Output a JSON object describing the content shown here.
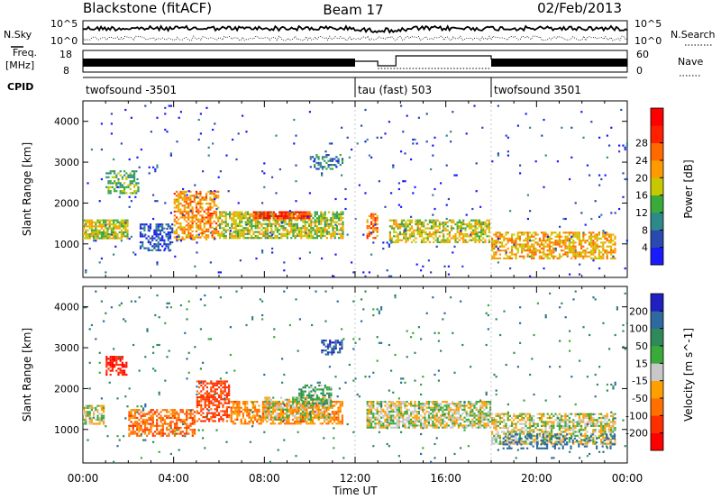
{
  "header": {
    "radar_title": "Blackstone (fitACF)",
    "beam_label": "Beam 17",
    "date_label": "02/Feb/2013"
  },
  "noise_panel": {
    "left_label": "N.Sky",
    "right_label": "N.Search",
    "tick_top": "10^5",
    "tick_bottom": "10^0",
    "right_tick_top": "10^5",
    "right_tick_bottom": "10^0"
  },
  "freq_panel": {
    "left_label_1": "Freq.",
    "left_label_2": "[MHz]",
    "left_tick_top": "18",
    "left_tick_bottom": "8",
    "right_label": "Nave",
    "right_tick_top": "60",
    "right_tick_bottom": "0"
  },
  "cpid_panel": {
    "label": "CPID",
    "segments": [
      {
        "start_hour": 0,
        "end_hour": 12,
        "text": "twofsound -3501"
      },
      {
        "start_hour": 12,
        "end_hour": 18,
        "text": "tau (fast) 503"
      },
      {
        "start_hour": 18,
        "end_hour": 24,
        "text": "twofsound 3501"
      }
    ]
  },
  "chart_data": [
    {
      "type": "heatmap",
      "panel": "power",
      "ylabel": "Slant Range [km]",
      "ylim": [
        180,
        4500
      ],
      "yticks": [
        "1000",
        "2000",
        "3000",
        "4000"
      ],
      "xlim": [
        0,
        24
      ],
      "colorbar": {
        "label": "Power [dB]",
        "ticks": [
          "4",
          "8",
          "12",
          "16",
          "20",
          "24",
          "28"
        ],
        "colors": [
          "#1a1aff",
          "#2a4ab0",
          "#2e8a8a",
          "#3aaa3a",
          "#c8c800",
          "#ff9a00",
          "#ff6a00",
          "#ff2000",
          "#ff0000"
        ]
      },
      "scatter_regions": [
        {
          "h0": 0.0,
          "h1": 2.0,
          "r0": 1100,
          "r1": 1600,
          "v": 18,
          "d": 0.8
        },
        {
          "h0": 1.0,
          "h1": 2.5,
          "r0": 2200,
          "r1": 2800,
          "v": 14,
          "d": 0.5
        },
        {
          "h0": 2.5,
          "h1": 4.0,
          "r0": 800,
          "r1": 1500,
          "v": 7,
          "d": 0.5
        },
        {
          "h0": 4.0,
          "h1": 6.0,
          "r0": 1100,
          "r1": 2300,
          "v": 22,
          "d": 0.6
        },
        {
          "h0": 6.0,
          "h1": 11.5,
          "r0": 1100,
          "r1": 1800,
          "v": 17,
          "d": 0.7
        },
        {
          "h0": 7.5,
          "h1": 10.0,
          "r0": 1600,
          "r1": 1800,
          "v": 28,
          "d": 0.8
        },
        {
          "h0": 10.0,
          "h1": 11.5,
          "r0": 2800,
          "r1": 3200,
          "v": 10,
          "d": 0.4
        },
        {
          "h0": 12.5,
          "h1": 13.0,
          "r0": 1100,
          "r1": 1800,
          "v": 24,
          "d": 0.6
        },
        {
          "h0": 13.5,
          "h1": 18.0,
          "r0": 1000,
          "r1": 1600,
          "v": 18,
          "d": 0.6
        },
        {
          "h0": 18.0,
          "h1": 23.5,
          "r0": 600,
          "r1": 1300,
          "v": 21,
          "d": 0.6
        },
        {
          "h0": 0.0,
          "h1": 24.0,
          "r0": 200,
          "r1": 4400,
          "v": 6,
          "d": 0.015
        }
      ]
    },
    {
      "type": "heatmap",
      "panel": "velocity",
      "ylabel": "Slant Range [km]",
      "xlabel": "Time UT",
      "ylim": [
        180,
        4500
      ],
      "yticks": [
        "1000",
        "2000",
        "3000",
        "4000"
      ],
      "xlim": [
        0,
        24
      ],
      "xticks": [
        "00:00",
        "04:00",
        "08:00",
        "12:00",
        "16:00",
        "20:00",
        "00:00"
      ],
      "colorbar": {
        "label": "Velocity [m s^-1]",
        "ticks": [
          "200",
          "100",
          "50",
          "15",
          "-15",
          "-50",
          "-100",
          "-200"
        ],
        "colors": [
          "#2020c0",
          "#2e6aa0",
          "#2e8a5a",
          "#3aaa3a",
          "#c8c8c8",
          "#ffa000",
          "#ff7000",
          "#ff3000",
          "#ff0000"
        ]
      },
      "scatter_regions": [
        {
          "h0": 0.0,
          "h1": 1.0,
          "r0": 1100,
          "r1": 1600,
          "v": 0,
          "d": 0.7
        },
        {
          "h0": 1.0,
          "h1": 2.0,
          "r0": 2300,
          "r1": 2800,
          "v": -200,
          "d": 0.6
        },
        {
          "h0": 2.0,
          "h1": 5.0,
          "r0": 800,
          "r1": 1500,
          "v": -80,
          "d": 0.6
        },
        {
          "h0": 5.0,
          "h1": 6.5,
          "r0": 1200,
          "r1": 2200,
          "v": -120,
          "d": 0.6
        },
        {
          "h0": 6.5,
          "h1": 11.5,
          "r0": 1100,
          "r1": 1700,
          "v": -60,
          "d": 0.6
        },
        {
          "h0": 8.0,
          "h1": 11.0,
          "r0": 1200,
          "r1": 1800,
          "v": 0,
          "d": 0.6
        },
        {
          "h0": 9.5,
          "h1": 11.0,
          "r0": 1600,
          "r1": 2100,
          "v": 50,
          "d": 0.5
        },
        {
          "h0": 10.5,
          "h1": 11.5,
          "r0": 2800,
          "r1": 3200,
          "v": 200,
          "d": 0.5
        },
        {
          "h0": 12.5,
          "h1": 18.0,
          "r0": 1000,
          "r1": 1700,
          "v": 0,
          "d": 0.7
        },
        {
          "h0": 18.0,
          "h1": 23.5,
          "r0": 600,
          "r1": 1400,
          "v": 0,
          "d": 0.6
        },
        {
          "h0": 18.5,
          "h1": 23.5,
          "r0": 500,
          "r1": 900,
          "v": 150,
          "d": 0.3
        },
        {
          "h0": 0.0,
          "h1": 24.0,
          "r0": 200,
          "r1": 4400,
          "v": 80,
          "d": 0.015
        }
      ]
    }
  ]
}
